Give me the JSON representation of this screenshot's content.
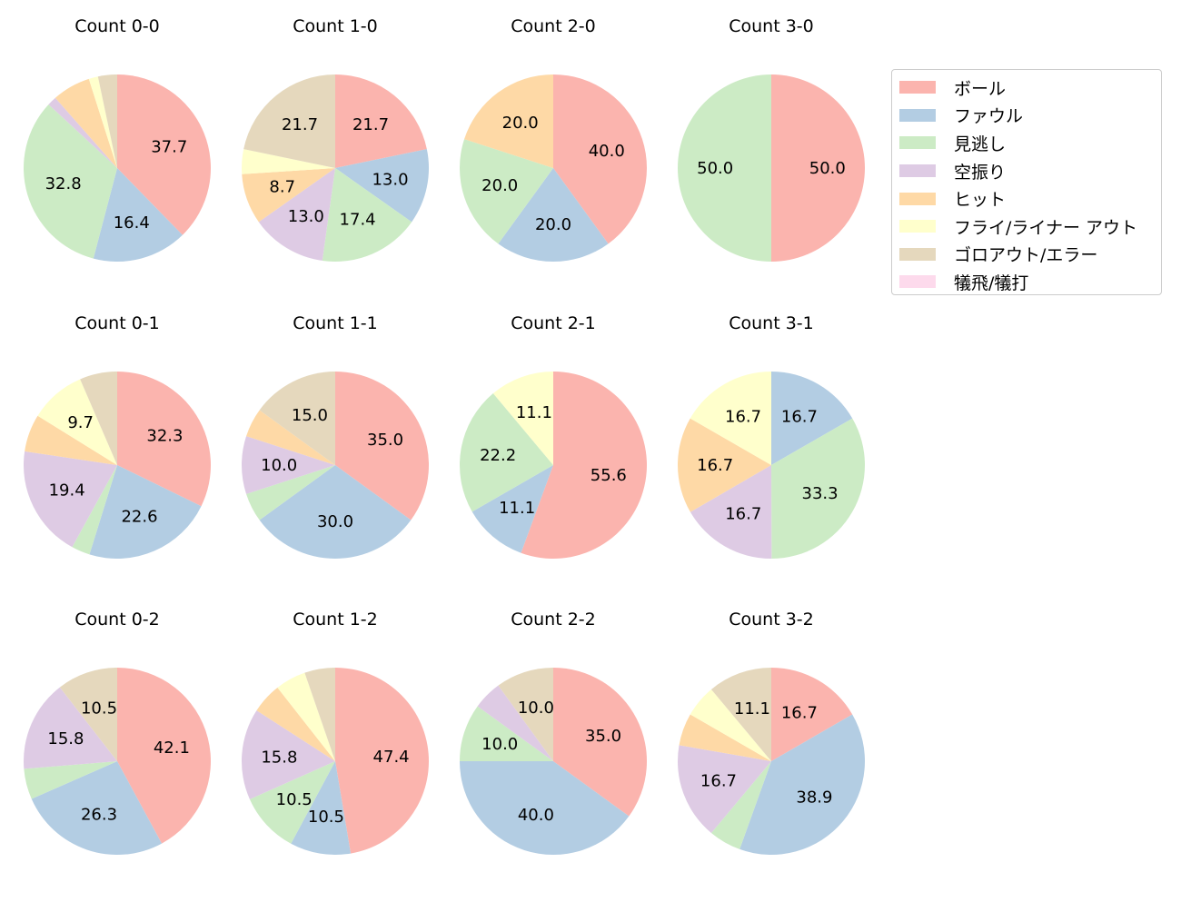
{
  "chart_data": {
    "type": "pie",
    "legend": {
      "placement": "top-right",
      "entries": [
        "ボール",
        "ファウル",
        "見逃し",
        "空振り",
        "ヒット",
        "フライ/ライナー アウト",
        "ゴロアウト/エラー",
        "犠飛/犠打"
      ]
    },
    "colors": [
      "#fbb4ae",
      "#b3cde3",
      "#ccebc5",
      "#decbe4",
      "#fed9a6",
      "#ffffcc",
      "#e5d8bd",
      "#fddaec"
    ],
    "pies": [
      {
        "title": "Count 0-0",
        "values": [
          37.7,
          16.4,
          32.8,
          1.6,
          6.6,
          1.6,
          3.3,
          0
        ]
      },
      {
        "title": "Count 1-0",
        "values": [
          21.7,
          13.0,
          17.4,
          13.0,
          8.7,
          4.3,
          21.7,
          0
        ]
      },
      {
        "title": "Count 2-0",
        "values": [
          40.0,
          20.0,
          20.0,
          0,
          20.0,
          0,
          0,
          0
        ]
      },
      {
        "title": "Count 3-0",
        "values": [
          50.0,
          0,
          50.0,
          0,
          0,
          0,
          0,
          0
        ]
      },
      {
        "title": "Count 0-1",
        "values": [
          32.3,
          22.6,
          3.2,
          19.4,
          6.5,
          9.7,
          6.5,
          0
        ]
      },
      {
        "title": "Count 1-1",
        "values": [
          35.0,
          30.0,
          5.0,
          10.0,
          5.0,
          0,
          15.0,
          0
        ]
      },
      {
        "title": "Count 2-1",
        "values": [
          55.6,
          11.1,
          22.2,
          0,
          0,
          11.1,
          0,
          0
        ]
      },
      {
        "title": "Count 3-1",
        "values": [
          0,
          16.7,
          33.3,
          16.7,
          16.7,
          16.7,
          0,
          0
        ]
      },
      {
        "title": "Count 0-2",
        "values": [
          42.1,
          26.3,
          5.3,
          15.8,
          0,
          0,
          10.5,
          0
        ]
      },
      {
        "title": "Count 1-2",
        "values": [
          47.4,
          10.5,
          10.5,
          15.8,
          5.3,
          5.3,
          5.3,
          0
        ]
      },
      {
        "title": "Count 2-2",
        "values": [
          35.0,
          40.0,
          10.0,
          5.0,
          0,
          0,
          10.0,
          0
        ]
      },
      {
        "title": "Count 3-2",
        "values": [
          16.7,
          38.9,
          5.6,
          16.7,
          5.6,
          5.6,
          11.1,
          0
        ]
      }
    ]
  }
}
